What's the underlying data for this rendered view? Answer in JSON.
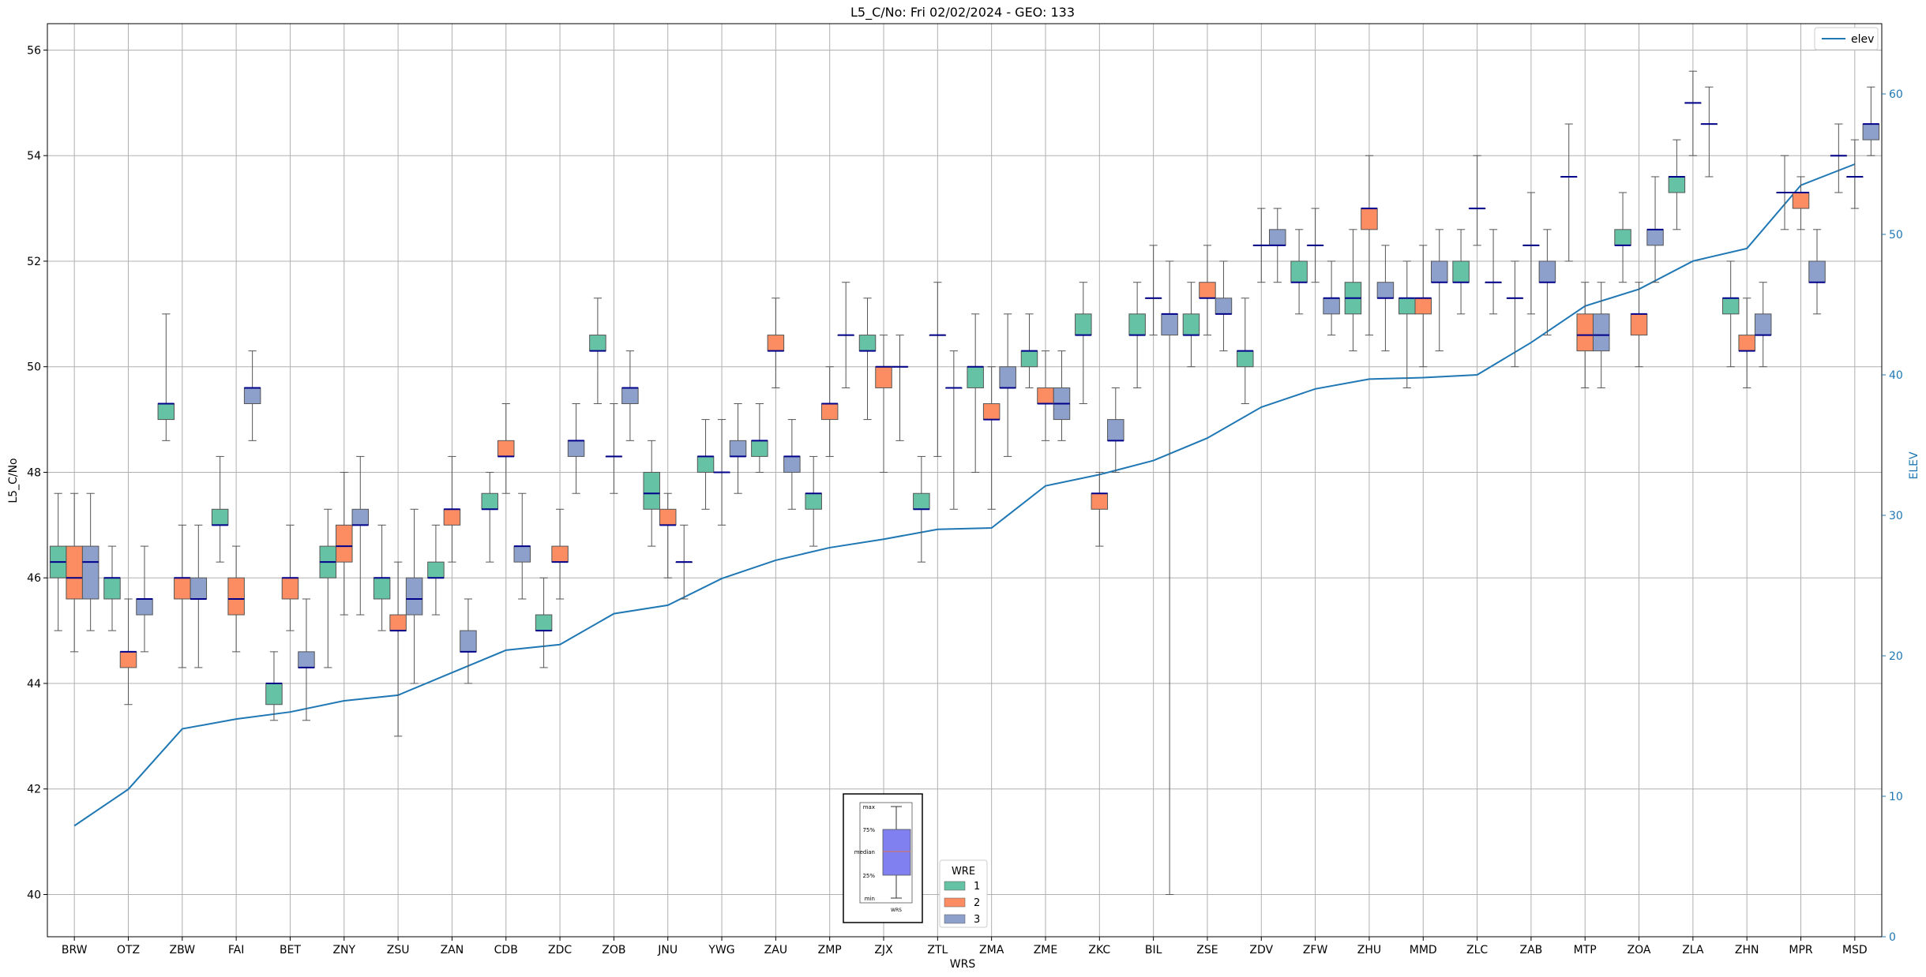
{
  "chart_data": {
    "type": "box",
    "title": "L5_C/No: Fri 02/02/2024 - GEO: 133",
    "xlabel": "WRS",
    "ylabel": "L5_C/No",
    "y2label": "ELEV",
    "ylim": [
      39.2,
      56.5
    ],
    "y2lim": [
      0,
      65
    ],
    "yticks": [
      40,
      42,
      44,
      46,
      48,
      50,
      52,
      54,
      56
    ],
    "y2ticks": [
      0,
      10,
      20,
      30,
      40,
      50,
      60
    ],
    "grid": true,
    "categories": [
      "BRW",
      "OTZ",
      "ZBW",
      "FAI",
      "BET",
      "ZNY",
      "ZSU",
      "ZAN",
      "CDB",
      "ZDC",
      "ZOB",
      "JNU",
      "YWG",
      "ZAU",
      "ZMP",
      "ZJX",
      "ZTL",
      "ZMA",
      "ZME",
      "ZKC",
      "BIL",
      "ZSE",
      "ZDV",
      "ZFW",
      "ZHU",
      "MMD",
      "ZLC",
      "ZAB",
      "MTP",
      "ZOA",
      "ZLA",
      "ZHN",
      "MPR",
      "MSD"
    ],
    "legend": {
      "title": "WRE",
      "placement": "bottom-center",
      "entries": [
        "1",
        "2",
        "3"
      ]
    },
    "line_legend": {
      "entries": [
        "elev"
      ],
      "placement": "top-right"
    },
    "colors": {
      "wre1": "#66c2a5",
      "wre2": "#fc8d62",
      "wre3": "#8da0cb",
      "median": "#00008b",
      "elev": "#1f77b4",
      "grid": "#b0b0b0"
    },
    "elev": [
      7.9,
      10.5,
      14.8,
      15.5,
      16.0,
      16.8,
      17.2,
      18.8,
      20.4,
      20.8,
      23.0,
      23.6,
      25.5,
      26.8,
      27.7,
      28.3,
      29.0,
      29.1,
      32.1,
      32.9,
      33.9,
      35.5,
      37.7,
      39.0,
      39.7,
      39.8,
      40.0,
      42.3,
      44.9,
      46.1,
      48.1,
      49.0,
      53.5,
      55.0
    ],
    "elev_label": "elev",
    "inset_key": {
      "labels": [
        "max",
        "75%",
        "median",
        "25%",
        "min"
      ],
      "xlabel": "WRS"
    },
    "series": [
      {
        "name": "1",
        "color": "#66c2a5",
        "boxes": [
          {
            "cat": "BRW",
            "min": 45.0,
            "q1": 46.0,
            "med": 46.3,
            "q3": 46.6,
            "max": 47.6
          },
          {
            "cat": "OTZ",
            "min": 45.0,
            "q1": 45.6,
            "med": 46.0,
            "q3": 46.0,
            "max": 46.6
          },
          {
            "cat": "ZBW",
            "min": 48.6,
            "q1": 49.0,
            "med": 49.3,
            "q3": 49.3,
            "max": 51.0
          },
          {
            "cat": "FAI",
            "min": 46.3,
            "q1": 47.0,
            "med": 47.0,
            "q3": 47.3,
            "max": 48.3
          },
          {
            "cat": "BET",
            "min": 43.3,
            "q1": 43.6,
            "med": 44.0,
            "q3": 44.0,
            "max": 44.6
          },
          {
            "cat": "ZNY",
            "min": 44.3,
            "q1": 46.0,
            "med": 46.3,
            "q3": 46.6,
            "max": 47.3
          },
          {
            "cat": "ZSU",
            "min": 45.0,
            "q1": 45.6,
            "med": 46.0,
            "q3": 46.0,
            "max": 47.0
          },
          {
            "cat": "ZAN",
            "min": 45.3,
            "q1": 46.0,
            "med": 46.0,
            "q3": 46.3,
            "max": 47.0
          },
          {
            "cat": "CDB",
            "min": 46.3,
            "q1": 47.3,
            "med": 47.3,
            "q3": 47.6,
            "max": 48.0
          },
          {
            "cat": "ZDC",
            "min": 44.3,
            "q1": 45.0,
            "med": 45.0,
            "q3": 45.3,
            "max": 46.0
          },
          {
            "cat": "ZOB",
            "min": 49.3,
            "q1": 50.3,
            "med": 50.3,
            "q3": 50.6,
            "max": 51.3
          },
          {
            "cat": "JNU",
            "min": 46.6,
            "q1": 47.3,
            "med": 47.6,
            "q3": 48.0,
            "max": 48.6
          },
          {
            "cat": "YWG",
            "min": 47.3,
            "q1": 48.0,
            "med": 48.3,
            "q3": 48.3,
            "max": 49.0
          },
          {
            "cat": "ZAU",
            "min": 48.0,
            "q1": 48.3,
            "med": 48.6,
            "q3": 48.6,
            "max": 49.3
          },
          {
            "cat": "ZMP",
            "min": 46.6,
            "q1": 47.3,
            "med": 47.6,
            "q3": 47.6,
            "max": 48.3
          },
          {
            "cat": "ZJX",
            "min": 49.0,
            "q1": 50.3,
            "med": 50.3,
            "q3": 50.6,
            "max": 51.3
          },
          {
            "cat": "ZTL",
            "min": 46.3,
            "q1": 47.3,
            "med": 47.3,
            "q3": 47.6,
            "max": 48.3
          },
          {
            "cat": "ZMA",
            "min": 48.0,
            "q1": 49.6,
            "med": 50.0,
            "q3": 50.0,
            "max": 51.0
          },
          {
            "cat": "ZME",
            "min": 49.6,
            "q1": 50.0,
            "med": 50.3,
            "q3": 50.3,
            "max": 51.0
          },
          {
            "cat": "ZKC",
            "min": 49.3,
            "q1": 50.6,
            "med": 50.6,
            "q3": 51.0,
            "max": 51.6
          },
          {
            "cat": "BIL",
            "min": 49.6,
            "q1": 50.6,
            "med": 50.6,
            "q3": 51.0,
            "max": 51.6
          },
          {
            "cat": "ZSE",
            "min": 50.0,
            "q1": 50.6,
            "med": 50.6,
            "q3": 51.0,
            "max": 51.6
          },
          {
            "cat": "ZDV",
            "min": 49.3,
            "q1": 50.0,
            "med": 50.3,
            "q3": 50.3,
            "max": 51.3
          },
          {
            "cat": "ZFW",
            "min": 51.0,
            "q1": 51.6,
            "med": 51.6,
            "q3": 52.0,
            "max": 52.6
          },
          {
            "cat": "ZHU",
            "min": 50.3,
            "q1": 51.0,
            "med": 51.3,
            "q3": 51.6,
            "max": 52.6
          },
          {
            "cat": "MMD",
            "min": 49.6,
            "q1": 51.0,
            "med": 51.3,
            "q3": 51.3,
            "max": 52.0
          },
          {
            "cat": "ZLC",
            "min": 51.0,
            "q1": 51.6,
            "med": 51.6,
            "q3": 52.0,
            "max": 52.6
          },
          {
            "cat": "ZAB",
            "min": 50.0,
            "q1": 51.3,
            "med": 51.3,
            "q3": 51.3,
            "max": 52.0
          },
          {
            "cat": "MTP",
            "min": 52.0,
            "q1": 53.6,
            "med": 53.6,
            "q3": 53.6,
            "max": 54.6
          },
          {
            "cat": "ZOA",
            "min": 51.6,
            "q1": 52.3,
            "med": 52.3,
            "q3": 52.6,
            "max": 53.3
          },
          {
            "cat": "ZLA",
            "min": 52.6,
            "q1": 53.3,
            "med": 53.6,
            "q3": 53.6,
            "max": 54.3
          },
          {
            "cat": "ZHN",
            "min": 50.0,
            "q1": 51.0,
            "med": 51.3,
            "q3": 51.3,
            "max": 52.0
          },
          {
            "cat": "MPR",
            "min": 52.6,
            "q1": 53.3,
            "med": 53.3,
            "q3": 53.3,
            "max": 54.0
          },
          {
            "cat": "MSD",
            "min": 53.3,
            "q1": 54.0,
            "med": 54.0,
            "q3": 54.0,
            "max": 54.6
          }
        ]
      },
      {
        "name": "2",
        "color": "#fc8d62",
        "boxes": [
          {
            "cat": "BRW",
            "min": 44.6,
            "q1": 45.6,
            "med": 46.0,
            "q3": 46.6,
            "max": 47.6
          },
          {
            "cat": "OTZ",
            "min": 43.6,
            "q1": 44.3,
            "med": 44.6,
            "q3": 44.6,
            "max": 45.6
          },
          {
            "cat": "ZBW",
            "min": 44.3,
            "q1": 45.6,
            "med": 46.0,
            "q3": 46.0,
            "max": 47.0
          },
          {
            "cat": "FAI",
            "min": 44.6,
            "q1": 45.3,
            "med": 45.6,
            "q3": 46.0,
            "max": 46.6
          },
          {
            "cat": "BET",
            "min": 45.0,
            "q1": 45.6,
            "med": 46.0,
            "q3": 46.0,
            "max": 47.0
          },
          {
            "cat": "ZNY",
            "min": 45.3,
            "q1": 46.3,
            "med": 46.6,
            "q3": 47.0,
            "max": 48.0
          },
          {
            "cat": "ZSU",
            "min": 43.0,
            "q1": 45.0,
            "med": 45.0,
            "q3": 45.3,
            "max": 46.3
          },
          {
            "cat": "ZAN",
            "min": 46.3,
            "q1": 47.0,
            "med": 47.3,
            "q3": 47.3,
            "max": 48.3
          },
          {
            "cat": "CDB",
            "min": 47.6,
            "q1": 48.3,
            "med": 48.3,
            "q3": 48.6,
            "max": 49.3
          },
          {
            "cat": "ZDC",
            "min": 45.6,
            "q1": 46.3,
            "med": 46.3,
            "q3": 46.6,
            "max": 47.3
          },
          {
            "cat": "ZOB",
            "min": 47.6,
            "q1": 48.3,
            "med": 48.3,
            "q3": 48.3,
            "max": 49.3
          },
          {
            "cat": "JNU",
            "min": 46.0,
            "q1": 47.0,
            "med": 47.0,
            "q3": 47.3,
            "max": 47.6
          },
          {
            "cat": "YWG",
            "min": 47.0,
            "q1": 48.0,
            "med": 48.0,
            "q3": 48.0,
            "max": 49.0
          },
          {
            "cat": "ZAU",
            "min": 49.6,
            "q1": 50.3,
            "med": 50.3,
            "q3": 50.6,
            "max": 51.3
          },
          {
            "cat": "ZMP",
            "min": 48.3,
            "q1": 49.0,
            "med": 49.3,
            "q3": 49.3,
            "max": 50.0
          },
          {
            "cat": "ZJX",
            "min": 48.0,
            "q1": 49.6,
            "med": 50.0,
            "q3": 50.0,
            "max": 50.6
          },
          {
            "cat": "ZTL",
            "min": 48.3,
            "q1": 50.6,
            "med": 50.6,
            "q3": 50.6,
            "max": 51.6
          },
          {
            "cat": "ZMA",
            "min": 47.3,
            "q1": 49.0,
            "med": 49.0,
            "q3": 49.3,
            "max": 50.0
          },
          {
            "cat": "ZME",
            "min": 48.6,
            "q1": 49.3,
            "med": 49.3,
            "q3": 49.6,
            "max": 50.3
          },
          {
            "cat": "ZKC",
            "min": 46.6,
            "q1": 47.3,
            "med": 47.6,
            "q3": 47.6,
            "max": 48.0
          },
          {
            "cat": "BIL",
            "min": 50.6,
            "q1": 51.3,
            "med": 51.3,
            "q3": 51.3,
            "max": 52.3
          },
          {
            "cat": "ZSE",
            "min": 50.6,
            "q1": 51.3,
            "med": 51.3,
            "q3": 51.6,
            "max": 52.3
          },
          {
            "cat": "ZDV",
            "min": 51.6,
            "q1": 52.3,
            "med": 52.3,
            "q3": 52.3,
            "max": 53.0
          },
          {
            "cat": "ZFW",
            "min": 51.6,
            "q1": 52.3,
            "med": 52.3,
            "q3": 52.3,
            "max": 53.0
          },
          {
            "cat": "ZHU",
            "min": 50.6,
            "q1": 52.6,
            "med": 53.0,
            "q3": 53.0,
            "max": 54.0
          },
          {
            "cat": "MMD",
            "min": 50.0,
            "q1": 51.0,
            "med": 51.3,
            "q3": 51.3,
            "max": 52.3
          },
          {
            "cat": "ZLC",
            "min": 52.3,
            "q1": 53.0,
            "med": 53.0,
            "q3": 53.0,
            "max": 54.0
          },
          {
            "cat": "ZAB",
            "min": 51.0,
            "q1": 52.3,
            "med": 52.3,
            "q3": 52.3,
            "max": 53.3
          },
          {
            "cat": "MTP",
            "min": 49.6,
            "q1": 50.3,
            "med": 50.6,
            "q3": 51.0,
            "max": 51.6
          },
          {
            "cat": "ZOA",
            "min": 50.0,
            "q1": 50.6,
            "med": 51.0,
            "q3": 51.0,
            "max": 51.6
          },
          {
            "cat": "ZLA",
            "min": 54.0,
            "q1": 55.0,
            "med": 55.0,
            "q3": 55.0,
            "max": 55.6
          },
          {
            "cat": "ZHN",
            "min": 49.6,
            "q1": 50.3,
            "med": 50.3,
            "q3": 50.6,
            "max": 51.3
          },
          {
            "cat": "MPR",
            "min": 52.6,
            "q1": 53.0,
            "med": 53.3,
            "q3": 53.3,
            "max": 53.6
          },
          {
            "cat": "MSD",
            "min": 53.0,
            "q1": 53.6,
            "med": 53.6,
            "q3": 53.6,
            "max": 54.3
          }
        ]
      },
      {
        "name": "3",
        "color": "#8da0cb",
        "boxes": [
          {
            "cat": "BRW",
            "min": 45.0,
            "q1": 45.6,
            "med": 46.3,
            "q3": 46.6,
            "max": 47.6
          },
          {
            "cat": "OTZ",
            "min": 44.6,
            "q1": 45.3,
            "med": 45.6,
            "q3": 45.6,
            "max": 46.6
          },
          {
            "cat": "ZBW",
            "min": 44.3,
            "q1": 45.6,
            "med": 45.6,
            "q3": 46.0,
            "max": 47.0
          },
          {
            "cat": "FAI",
            "min": 48.6,
            "q1": 49.3,
            "med": 49.6,
            "q3": 49.6,
            "max": 50.3
          },
          {
            "cat": "BET",
            "min": 43.3,
            "q1": 44.3,
            "med": 44.3,
            "q3": 44.6,
            "max": 45.6
          },
          {
            "cat": "ZNY",
            "min": 45.3,
            "q1": 47.0,
            "med": 47.0,
            "q3": 47.3,
            "max": 48.3
          },
          {
            "cat": "ZSU",
            "min": 44.0,
            "q1": 45.3,
            "med": 45.6,
            "q3": 46.0,
            "max": 47.3
          },
          {
            "cat": "ZAN",
            "min": 44.0,
            "q1": 44.6,
            "med": 44.6,
            "q3": 45.0,
            "max": 45.6
          },
          {
            "cat": "CDB",
            "min": 45.6,
            "q1": 46.3,
            "med": 46.6,
            "q3": 46.6,
            "max": 47.6
          },
          {
            "cat": "ZDC",
            "min": 47.6,
            "q1": 48.3,
            "med": 48.6,
            "q3": 48.6,
            "max": 49.3
          },
          {
            "cat": "ZOB",
            "min": 48.6,
            "q1": 49.3,
            "med": 49.6,
            "q3": 49.6,
            "max": 50.3
          },
          {
            "cat": "JNU",
            "min": 45.6,
            "q1": 46.3,
            "med": 46.3,
            "q3": 46.3,
            "max": 47.0
          },
          {
            "cat": "YWG",
            "min": 47.6,
            "q1": 48.3,
            "med": 48.3,
            "q3": 48.6,
            "max": 49.3
          },
          {
            "cat": "ZAU",
            "min": 47.3,
            "q1": 48.0,
            "med": 48.3,
            "q3": 48.3,
            "max": 49.0
          },
          {
            "cat": "ZMP",
            "min": 49.6,
            "q1": 50.6,
            "med": 50.6,
            "q3": 50.6,
            "max": 51.6
          },
          {
            "cat": "ZJX",
            "min": 48.6,
            "q1": 50.0,
            "med": 50.0,
            "q3": 50.0,
            "max": 50.6
          },
          {
            "cat": "ZTL",
            "min": 47.3,
            "q1": 49.6,
            "med": 49.6,
            "q3": 49.6,
            "max": 50.3
          },
          {
            "cat": "ZMA",
            "min": 48.3,
            "q1": 49.6,
            "med": 49.6,
            "q3": 50.0,
            "max": 51.0
          },
          {
            "cat": "ZME",
            "min": 48.6,
            "q1": 49.0,
            "med": 49.3,
            "q3": 49.6,
            "max": 50.3
          },
          {
            "cat": "ZKC",
            "min": 48.0,
            "q1": 48.6,
            "med": 48.6,
            "q3": 49.0,
            "max": 49.6
          },
          {
            "cat": "BIL",
            "min": 40.0,
            "q1": 50.6,
            "med": 51.0,
            "q3": 51.0,
            "max": 52.0
          },
          {
            "cat": "ZSE",
            "min": 50.3,
            "q1": 51.0,
            "med": 51.0,
            "q3": 51.3,
            "max": 52.0
          },
          {
            "cat": "ZDV",
            "min": 51.6,
            "q1": 52.3,
            "med": 52.3,
            "q3": 52.6,
            "max": 53.0
          },
          {
            "cat": "ZFW",
            "min": 50.6,
            "q1": 51.0,
            "med": 51.3,
            "q3": 51.3,
            "max": 52.0
          },
          {
            "cat": "ZHU",
            "min": 50.3,
            "q1": 51.3,
            "med": 51.3,
            "q3": 51.6,
            "max": 52.3
          },
          {
            "cat": "MMD",
            "min": 50.3,
            "q1": 51.6,
            "med": 51.6,
            "q3": 52.0,
            "max": 52.6
          },
          {
            "cat": "ZLC",
            "min": 51.0,
            "q1": 51.6,
            "med": 51.6,
            "q3": 51.6,
            "max": 52.6
          },
          {
            "cat": "ZAB",
            "min": 50.6,
            "q1": 51.6,
            "med": 51.6,
            "q3": 52.0,
            "max": 52.6
          },
          {
            "cat": "MTP",
            "min": 49.6,
            "q1": 50.3,
            "med": 50.6,
            "q3": 51.0,
            "max": 51.6
          },
          {
            "cat": "ZOA",
            "min": 51.6,
            "q1": 52.3,
            "med": 52.6,
            "q3": 52.6,
            "max": 53.6
          },
          {
            "cat": "ZLA",
            "min": 53.6,
            "q1": 54.6,
            "med": 54.6,
            "q3": 54.6,
            "max": 55.3
          },
          {
            "cat": "ZHN",
            "min": 50.0,
            "q1": 50.6,
            "med": 50.6,
            "q3": 51.0,
            "max": 51.6
          },
          {
            "cat": "MPR",
            "min": 51.0,
            "q1": 51.6,
            "med": 51.6,
            "q3": 52.0,
            "max": 52.6
          },
          {
            "cat": "MSD",
            "min": 54.0,
            "q1": 54.3,
            "med": 54.6,
            "q3": 54.6,
            "max": 55.3
          }
        ]
      }
    ]
  }
}
